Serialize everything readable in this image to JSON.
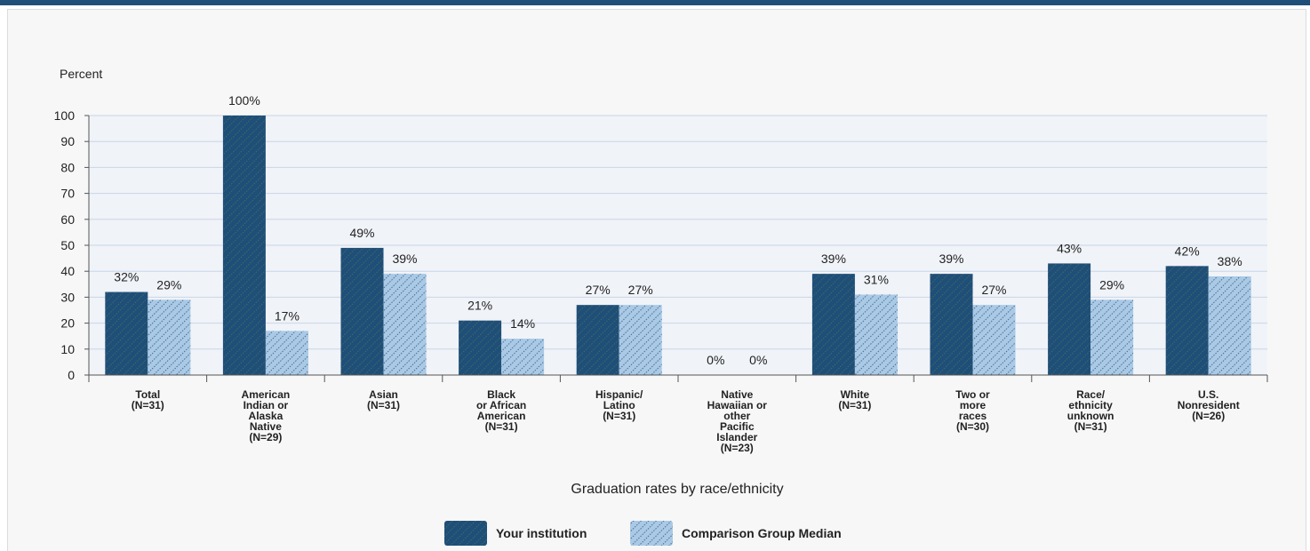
{
  "chart_data": {
    "type": "bar",
    "ylabel": "Percent",
    "xlabel": "Graduation rates by race/ethnicity",
    "ylim": [
      0,
      100
    ],
    "yticks": [
      0,
      10,
      20,
      30,
      40,
      50,
      60,
      70,
      80,
      90,
      100
    ],
    "grid": true,
    "legend_position": "bottom",
    "categories": [
      [
        "Total",
        "(N=31)"
      ],
      [
        "American",
        "Indian or",
        "Alaska",
        "Native",
        "(N=29)"
      ],
      [
        "Asian",
        "(N=31)"
      ],
      [
        "Black",
        "or African",
        "American",
        "(N=31)"
      ],
      [
        "Hispanic/",
        "Latino",
        "(N=31)"
      ],
      [
        "Native",
        "Hawaiian or",
        "other",
        "Pacific",
        "Islander",
        "(N=23)"
      ],
      [
        "White",
        "(N=31)"
      ],
      [
        "Two or",
        "more",
        "races",
        "(N=30)"
      ],
      [
        "Race/",
        "ethnicity",
        "unknown",
        "(N=31)"
      ],
      [
        "U.S.",
        "Nonresident",
        "(N=26)"
      ]
    ],
    "series": [
      {
        "name": "Your institution",
        "values": [
          32,
          100,
          49,
          21,
          27,
          0,
          39,
          39,
          43,
          42
        ],
        "color": "#1f4e79",
        "pattern": "solid"
      },
      {
        "name": "Comparison Group Median",
        "values": [
          29,
          17,
          39,
          14,
          27,
          0,
          31,
          27,
          29,
          38
        ],
        "color": "#9fc4e0",
        "pattern": "diagonal-hatch"
      }
    ]
  }
}
